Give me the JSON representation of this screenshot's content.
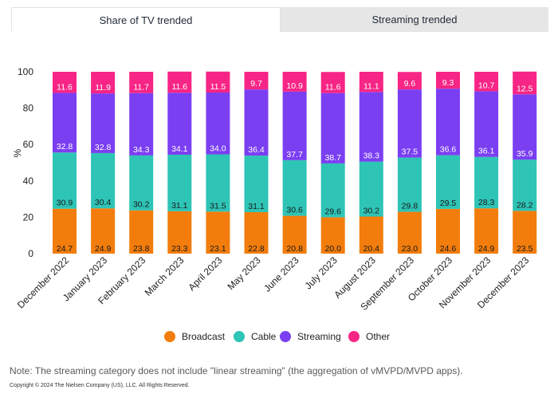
{
  "tabs": [
    {
      "label": "Share of TV trended",
      "active": true
    },
    {
      "label": "Streaming trended",
      "active": false
    }
  ],
  "chart_data": {
    "type": "bar",
    "stacked": true,
    "title": "",
    "xlabel": "",
    "ylabel": "%",
    "ylim": [
      0,
      100
    ],
    "yticks": [
      0,
      20,
      40,
      60,
      80,
      100
    ],
    "grid": false,
    "legend_position": "bottom",
    "categories": [
      "December 2022",
      "January 2023",
      "February 2023",
      "March 2023",
      "April 2023",
      "May 2023",
      "June 2023",
      "July 2023",
      "August 2023",
      "September 2023",
      "October 2023",
      "November 2023",
      "December 2023"
    ],
    "series": [
      {
        "name": "Broadcast",
        "color": "#f27d0c",
        "values": [
          24.7,
          24.9,
          23.8,
          23.3,
          23.1,
          22.8,
          20.8,
          20.0,
          20.4,
          23.0,
          24.6,
          24.9,
          23.5
        ],
        "labels": [
          "24.7",
          "24.9",
          "23.8",
          "23.3",
          "23.1",
          "22.8",
          "20.8",
          "20.0",
          "20.4",
          "23.0",
          "24.6",
          "24.9",
          "23.5"
        ]
      },
      {
        "name": "Cable",
        "color": "#2ec4b6",
        "values": [
          30.9,
          30.4,
          30.2,
          31.1,
          31.5,
          31.1,
          30.6,
          29.6,
          30.2,
          29.8,
          29.5,
          28.3,
          28.2
        ],
        "labels": [
          "30.9",
          "30.4",
          "30.2",
          "31.1",
          "31.5",
          "31.1",
          "30.6",
          "29.6",
          "30.2",
          "29.8",
          "29.5",
          "28.3",
          "28.2"
        ]
      },
      {
        "name": "Streaming",
        "color": "#7b3ff2",
        "values": [
          32.8,
          32.8,
          34.3,
          34.1,
          34.0,
          36.4,
          37.7,
          38.7,
          38.3,
          37.5,
          36.6,
          36.1,
          35.9
        ],
        "labels": [
          "32.8",
          "32.8",
          "34.3",
          "34.1",
          "34.0",
          "36.4",
          "37.7",
          "38.7",
          "38.3",
          "37.5",
          "36.6",
          "36.1",
          "35.9"
        ]
      },
      {
        "name": "Other",
        "color": "#f72585",
        "values": [
          11.6,
          11.9,
          11.7,
          11.6,
          11.5,
          9.7,
          10.9,
          11.6,
          11.1,
          9.6,
          9.3,
          10.7,
          12.5
        ],
        "labels": [
          "11.6",
          "11.9",
          "11.7",
          "11.6",
          "11.5",
          "9.7",
          "10.9",
          "11.6",
          "11.1",
          "9.6",
          "9.3",
          "10.7",
          "12.5"
        ]
      }
    ]
  },
  "note": "Note: The streaming category does not include \"linear streaming\" (the aggregation of vMVPD/MVPD apps).",
  "copyright": "Copyright © 2024 The Nielsen Company (US), LLC. All Rights Reserved."
}
